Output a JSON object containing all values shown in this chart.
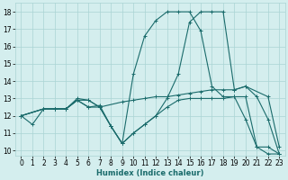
{
  "background_color": "#d4eeee",
  "grid_color": "#aad4d4",
  "line_color": "#1a6b6b",
  "xlabel": "Humidex (Indice chaleur)",
  "xlim": [
    -0.5,
    23.5
  ],
  "ylim": [
    9.7,
    18.5
  ],
  "yticks": [
    10,
    11,
    12,
    13,
    14,
    15,
    16,
    17,
    18
  ],
  "xticks": [
    0,
    1,
    2,
    3,
    4,
    5,
    6,
    7,
    8,
    9,
    10,
    11,
    12,
    13,
    14,
    15,
    16,
    17,
    18,
    19,
    20,
    21,
    22,
    23
  ],
  "series": [
    {
      "x": [
        0,
        2,
        3,
        4,
        5,
        6,
        7,
        8,
        9,
        10,
        11,
        12,
        13,
        14,
        15,
        16,
        17,
        18,
        19,
        20,
        21,
        22,
        23
      ],
      "y": [
        12,
        12.4,
        12.4,
        12.4,
        12.9,
        12.9,
        12.5,
        11.4,
        10.4,
        14.4,
        16.6,
        17.5,
        18.0,
        18.0,
        18.0,
        16.9,
        13.7,
        13.1,
        13.1,
        11.8,
        10.2,
        9.8,
        9.8
      ]
    },
    {
      "x": [
        0,
        2,
        3,
        4,
        5,
        6,
        7,
        9,
        10,
        11,
        12,
        13,
        14,
        15,
        16,
        17,
        18,
        19,
        20,
        22,
        23
      ],
      "y": [
        12,
        12.4,
        12.4,
        12.4,
        13.0,
        12.9,
        12.5,
        12.8,
        12.9,
        13.0,
        13.1,
        13.1,
        13.2,
        13.3,
        13.4,
        13.5,
        13.5,
        13.5,
        13.7,
        13.1,
        10.2
      ]
    },
    {
      "x": [
        0,
        1,
        2,
        3,
        4,
        5,
        6,
        7,
        8,
        9,
        10,
        11,
        12,
        13,
        14,
        15,
        16,
        17,
        18,
        19,
        20,
        21,
        22,
        23
      ],
      "y": [
        12,
        11.5,
        12.4,
        12.4,
        12.4,
        12.9,
        12.5,
        12.5,
        11.4,
        10.4,
        11.0,
        11.5,
        12.0,
        12.5,
        12.9,
        13.0,
        13.0,
        13.0,
        13.0,
        13.1,
        13.1,
        10.2,
        10.2,
        9.8
      ]
    },
    {
      "x": [
        0,
        2,
        3,
        4,
        5,
        6,
        7,
        8,
        9,
        10,
        11,
        12,
        13,
        14,
        15,
        16,
        17,
        18,
        19,
        20,
        21,
        22,
        23
      ],
      "y": [
        12,
        12.4,
        12.4,
        12.4,
        12.9,
        12.5,
        12.6,
        11.4,
        10.4,
        11.0,
        11.5,
        12.0,
        13.0,
        14.4,
        17.4,
        18.0,
        18.0,
        18.0,
        13.5,
        13.7,
        13.1,
        11.8,
        9.8
      ]
    }
  ]
}
